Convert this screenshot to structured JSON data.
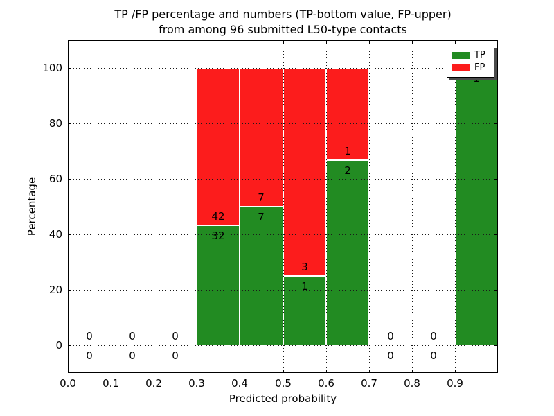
{
  "chart_data": {
    "type": "bar",
    "stacked": true,
    "title": "TP /FP percentage and numbers (TP-bottom value, FP-upper) from among 96 submitted L50-type contacts",
    "title_lines": [
      "TP /FP percentage and numbers (TP-bottom value, FP-upper)",
      "from among 96 submitted L50-type contacts"
    ],
    "xlabel": "Predicted probability",
    "ylabel": "Percentage",
    "xlim": [
      0.0,
      1.0
    ],
    "ylim": [
      -10,
      110
    ],
    "grid": true,
    "legend_position": "upper right",
    "xticks": [
      "0.0",
      "0.1",
      "0.2",
      "0.3",
      "0.4",
      "0.5",
      "0.6",
      "0.7",
      "0.8",
      "0.9"
    ],
    "xtick_values": [
      0.0,
      0.1,
      0.2,
      0.3,
      0.4,
      0.5,
      0.6,
      0.7,
      0.8,
      0.9
    ],
    "yticks": [
      0,
      20,
      40,
      60,
      80,
      100
    ],
    "colors": {
      "tp": "#228b22",
      "fp": "#fc1c1c",
      "axis": "#000000",
      "grid": "#1a1a1a",
      "background": "#ffffff"
    },
    "legend": [
      {
        "label": "TP",
        "color_key": "tp"
      },
      {
        "label": "FP",
        "color_key": "fp"
      }
    ],
    "bin_width": 0.1,
    "categories": [
      0.05,
      0.15,
      0.25,
      0.35,
      0.45,
      0.55,
      0.65,
      0.75,
      0.85,
      0.95
    ],
    "series": [
      {
        "name": "TP",
        "values": [
          0,
          0,
          0,
          43.24,
          50,
          25,
          66.67,
          0,
          0,
          100
        ]
      },
      {
        "name": "FP",
        "values": [
          0,
          0,
          0,
          56.76,
          50,
          75,
          33.33,
          0,
          0,
          0
        ]
      }
    ],
    "bins": [
      {
        "range": [
          0.0,
          0.1
        ],
        "tp": 0,
        "fp": 0,
        "tp_pct": 0,
        "fp_pct": 0
      },
      {
        "range": [
          0.1,
          0.2
        ],
        "tp": 0,
        "fp": 0,
        "tp_pct": 0,
        "fp_pct": 0
      },
      {
        "range": [
          0.2,
          0.3
        ],
        "tp": 0,
        "fp": 0,
        "tp_pct": 0,
        "fp_pct": 0
      },
      {
        "range": [
          0.3,
          0.4
        ],
        "tp": 32,
        "fp": 42,
        "tp_pct": 43.24,
        "fp_pct": 56.76
      },
      {
        "range": [
          0.4,
          0.5
        ],
        "tp": 7,
        "fp": 7,
        "tp_pct": 50,
        "fp_pct": 50
      },
      {
        "range": [
          0.5,
          0.6
        ],
        "tp": 1,
        "fp": 3,
        "tp_pct": 25,
        "fp_pct": 75
      },
      {
        "range": [
          0.6,
          0.7
        ],
        "tp": 2,
        "fp": 1,
        "tp_pct": 66.67,
        "fp_pct": 33.33
      },
      {
        "range": [
          0.7,
          0.8
        ],
        "tp": 0,
        "fp": 0,
        "tp_pct": 0,
        "fp_pct": 0
      },
      {
        "range": [
          0.8,
          0.9
        ],
        "tp": 0,
        "fp": 0,
        "tp_pct": 0,
        "fp_pct": 0
      },
      {
        "range": [
          0.9,
          1.0
        ],
        "tp": 1,
        "fp": 0,
        "tp_pct": 100,
        "fp_pct": 0
      }
    ]
  }
}
